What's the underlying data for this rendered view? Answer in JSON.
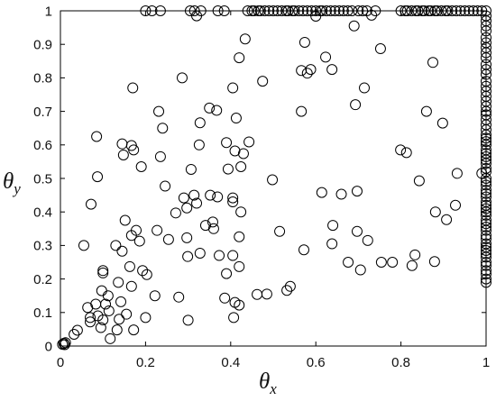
{
  "chart_data": {
    "type": "scatter",
    "xlabel": {
      "symbol": "θ",
      "subscript": "x"
    },
    "ylabel": {
      "symbol": "θ",
      "subscript": "y"
    },
    "xlim": [
      0,
      1
    ],
    "ylim": [
      0,
      1
    ],
    "xticks": [
      "0",
      "0.2",
      "0.4",
      "0.6",
      "0.8",
      "1"
    ],
    "yticks": [
      "0",
      "0.1",
      "0.2",
      "0.3",
      "0.4",
      "0.5",
      "0.6",
      "0.7",
      "0.8",
      "0.9",
      "1"
    ],
    "grid": false,
    "marker": "open-circle",
    "marker_color": "#000000",
    "points": [
      [
        0.005,
        0.005
      ],
      [
        0.008,
        0.008
      ],
      [
        0.01,
        0.004
      ],
      [
        0.012,
        0.01
      ],
      [
        0.032,
        0.035
      ],
      [
        0.04,
        0.047
      ],
      [
        0.055,
        0.3
      ],
      [
        0.064,
        0.115
      ],
      [
        0.07,
        0.085
      ],
      [
        0.07,
        0.072
      ],
      [
        0.072,
        0.423
      ],
      [
        0.083,
        0.125
      ],
      [
        0.085,
        0.625
      ],
      [
        0.087,
        0.505
      ],
      [
        0.088,
        0.09
      ],
      [
        0.095,
        0.055
      ],
      [
        0.097,
        0.165
      ],
      [
        0.1,
        0.078
      ],
      [
        0.1,
        0.225
      ],
      [
        0.1,
        0.218
      ],
      [
        0.106,
        0.125
      ],
      [
        0.112,
        0.15
      ],
      [
        0.114,
        0.105
      ],
      [
        0.117,
        0.022
      ],
      [
        0.13,
        0.3
      ],
      [
        0.133,
        0.048
      ],
      [
        0.136,
        0.19
      ],
      [
        0.138,
        0.08
      ],
      [
        0.142,
        0.132
      ],
      [
        0.145,
        0.283
      ],
      [
        0.145,
        0.603
      ],
      [
        0.148,
        0.57
      ],
      [
        0.152,
        0.375
      ],
      [
        0.155,
        0.095
      ],
      [
        0.163,
        0.237
      ],
      [
        0.167,
        0.178
      ],
      [
        0.167,
        0.33
      ],
      [
        0.167,
        0.598
      ],
      [
        0.172,
        0.585
      ],
      [
        0.17,
        0.77
      ],
      [
        0.172,
        0.048
      ],
      [
        0.178,
        0.345
      ],
      [
        0.186,
        0.313
      ],
      [
        0.19,
        0.535
      ],
      [
        0.193,
        0.225
      ],
      [
        0.2,
        0.085
      ],
      [
        0.203,
        0.213
      ],
      [
        0.222,
        0.15
      ],
      [
        0.227,
        0.345
      ],
      [
        0.231,
        0.7
      ],
      [
        0.24,
        0.65
      ],
      [
        0.235,
        0.565
      ],
      [
        0.246,
        0.477
      ],
      [
        0.254,
        0.318
      ],
      [
        0.271,
        0.397
      ],
      [
        0.278,
        0.146
      ],
      [
        0.286,
        0.8
      ],
      [
        0.29,
        0.442
      ],
      [
        0.297,
        0.412
      ],
      [
        0.297,
        0.323
      ],
      [
        0.299,
        0.267
      ],
      [
        0.3,
        0.077
      ],
      [
        0.307,
        0.527
      ],
      [
        0.314,
        0.45
      ],
      [
        0.32,
        0.426
      ],
      [
        0.326,
        0.6
      ],
      [
        0.328,
        0.666
      ],
      [
        0.328,
        0.277
      ],
      [
        0.341,
        0.36
      ],
      [
        0.35,
        0.71
      ],
      [
        0.352,
        0.45
      ],
      [
        0.358,
        0.37
      ],
      [
        0.36,
        0.35
      ],
      [
        0.367,
        0.703
      ],
      [
        0.369,
        0.445
      ],
      [
        0.373,
        0.27
      ],
      [
        0.386,
        0.143
      ],
      [
        0.39,
        0.607
      ],
      [
        0.39,
        0.216
      ],
      [
        0.394,
        0.528
      ],
      [
        0.405,
        0.77
      ],
      [
        0.405,
        0.442
      ],
      [
        0.405,
        0.43
      ],
      [
        0.405,
        0.27
      ],
      [
        0.407,
        0.085
      ],
      [
        0.41,
        0.13
      ],
      [
        0.41,
        0.582
      ],
      [
        0.413,
        0.68
      ],
      [
        0.42,
        0.237
      ],
      [
        0.42,
        0.122
      ],
      [
        0.42,
        0.86
      ],
      [
        0.42,
        0.326
      ],
      [
        0.424,
        0.4
      ],
      [
        0.424,
        0.535
      ],
      [
        0.43,
        0.574
      ],
      [
        0.434,
        0.916
      ],
      [
        0.443,
        0.609
      ],
      [
        0.462,
        0.154
      ],
      [
        0.475,
        0.79
      ],
      [
        0.485,
        0.155
      ],
      [
        0.498,
        0.496
      ],
      [
        0.515,
        0.342
      ],
      [
        0.532,
        0.166
      ],
      [
        0.54,
        0.178
      ],
      [
        0.566,
        0.7
      ],
      [
        0.566,
        0.822
      ],
      [
        0.572,
        0.287
      ],
      [
        0.574,
        0.906
      ],
      [
        0.58,
        0.814
      ],
      [
        0.588,
        0.825
      ],
      [
        0.6,
        0.984
      ],
      [
        0.614,
        0.458
      ],
      [
        0.623,
        0.862
      ],
      [
        0.638,
        0.825
      ],
      [
        0.638,
        0.305
      ],
      [
        0.64,
        0.36
      ],
      [
        0.66,
        0.453
      ],
      [
        0.676,
        0.25
      ],
      [
        0.69,
        0.955
      ],
      [
        0.693,
        0.72
      ],
      [
        0.697,
        0.462
      ],
      [
        0.697,
        0.342
      ],
      [
        0.705,
        0.227
      ],
      [
        0.714,
        0.77
      ],
      [
        0.722,
        0.315
      ],
      [
        0.731,
        0.987
      ],
      [
        0.752,
        0.887
      ],
      [
        0.754,
        0.25
      ],
      [
        0.78,
        0.25
      ],
      [
        0.799,
        0.585
      ],
      [
        0.813,
        0.577
      ],
      [
        0.826,
        0.24
      ],
      [
        0.833,
        0.272
      ],
      [
        0.843,
        0.493
      ],
      [
        0.86,
        0.7
      ],
      [
        0.875,
        0.846
      ],
      [
        0.879,
        0.252
      ],
      [
        0.881,
        0.4
      ],
      [
        0.898,
        0.665
      ],
      [
        0.907,
        0.377
      ],
      [
        0.928,
        0.42
      ],
      [
        0.932,
        0.515
      ],
      [
        0.99,
        0.515
      ],
      [
        0.32,
        0.985
      ],
      [
        0.2,
        1
      ],
      [
        0.215,
        1
      ],
      [
        0.235,
        1
      ],
      [
        0.305,
        1
      ],
      [
        0.315,
        1
      ],
      [
        0.33,
        1
      ],
      [
        0.37,
        1
      ],
      [
        0.385,
        1
      ],
      [
        0.44,
        1
      ],
      [
        0.45,
        1
      ],
      [
        0.455,
        1
      ],
      [
        0.465,
        1
      ],
      [
        0.47,
        1
      ],
      [
        0.48,
        1
      ],
      [
        0.49,
        1
      ],
      [
        0.5,
        1
      ],
      [
        0.51,
        1
      ],
      [
        0.52,
        1
      ],
      [
        0.53,
        1
      ],
      [
        0.535,
        1
      ],
      [
        0.545,
        1
      ],
      [
        0.55,
        1
      ],
      [
        0.56,
        1
      ],
      [
        0.57,
        1
      ],
      [
        0.58,
        1
      ],
      [
        0.59,
        1
      ],
      [
        0.6,
        1
      ],
      [
        0.61,
        1
      ],
      [
        0.615,
        1
      ],
      [
        0.625,
        1
      ],
      [
        0.635,
        1
      ],
      [
        0.645,
        1
      ],
      [
        0.655,
        1
      ],
      [
        0.665,
        1
      ],
      [
        0.675,
        1
      ],
      [
        0.685,
        1
      ],
      [
        0.7,
        1
      ],
      [
        0.71,
        1
      ],
      [
        0.72,
        1
      ],
      [
        0.74,
        1
      ],
      [
        0.8,
        1
      ],
      [
        0.81,
        1
      ],
      [
        0.815,
        1
      ],
      [
        0.825,
        1
      ],
      [
        0.835,
        1
      ],
      [
        0.84,
        1
      ],
      [
        0.85,
        1
      ],
      [
        0.855,
        1
      ],
      [
        0.865,
        1
      ],
      [
        0.87,
        1
      ],
      [
        0.88,
        1
      ],
      [
        0.885,
        1
      ],
      [
        0.895,
        1
      ],
      [
        0.905,
        1
      ],
      [
        0.91,
        1
      ],
      [
        0.92,
        1
      ],
      [
        0.93,
        1
      ],
      [
        0.94,
        1
      ],
      [
        0.95,
        1
      ],
      [
        0.96,
        1
      ],
      [
        0.97,
        1
      ],
      [
        0.98,
        1
      ],
      [
        0.99,
        1
      ],
      [
        1,
        1
      ],
      [
        1,
        0.19
      ],
      [
        1,
        0.2
      ],
      [
        1,
        0.215
      ],
      [
        1,
        0.225
      ],
      [
        1,
        0.24
      ],
      [
        1,
        0.25
      ],
      [
        1,
        0.265
      ],
      [
        1,
        0.275
      ],
      [
        1,
        0.285
      ],
      [
        1,
        0.295
      ],
      [
        1,
        0.305
      ],
      [
        1,
        0.32
      ],
      [
        1,
        0.33
      ],
      [
        1,
        0.345
      ],
      [
        1,
        0.355
      ],
      [
        1,
        0.365
      ],
      [
        1,
        0.375
      ],
      [
        1,
        0.39
      ],
      [
        1,
        0.4
      ],
      [
        1,
        0.41
      ],
      [
        1,
        0.42
      ],
      [
        1,
        0.43
      ],
      [
        1,
        0.445
      ],
      [
        1,
        0.455
      ],
      [
        1,
        0.465
      ],
      [
        1,
        0.48
      ],
      [
        1,
        0.49
      ],
      [
        1,
        0.5
      ],
      [
        1,
        0.52
      ],
      [
        1,
        0.53
      ],
      [
        1,
        0.545
      ],
      [
        1,
        0.555
      ],
      [
        1,
        0.565
      ],
      [
        1,
        0.575
      ],
      [
        1,
        0.585
      ],
      [
        1,
        0.6
      ],
      [
        1,
        0.61
      ],
      [
        1,
        0.62
      ],
      [
        1,
        0.63
      ],
      [
        1,
        0.645
      ],
      [
        1,
        0.66
      ],
      [
        1,
        0.675
      ],
      [
        1,
        0.69
      ],
      [
        1,
        0.7
      ],
      [
        1,
        0.715
      ],
      [
        1,
        0.73
      ],
      [
        1,
        0.745
      ],
      [
        1,
        0.76
      ],
      [
        1,
        0.775
      ],
      [
        1,
        0.79
      ],
      [
        1,
        0.81
      ],
      [
        1,
        0.825
      ],
      [
        1,
        0.84
      ],
      [
        1,
        0.86
      ],
      [
        1,
        0.875
      ],
      [
        1,
        0.89
      ],
      [
        1,
        0.905
      ],
      [
        1,
        0.92
      ],
      [
        1,
        0.94
      ],
      [
        1,
        0.955
      ],
      [
        1,
        0.97
      ],
      [
        1,
        0.985
      ]
    ]
  }
}
